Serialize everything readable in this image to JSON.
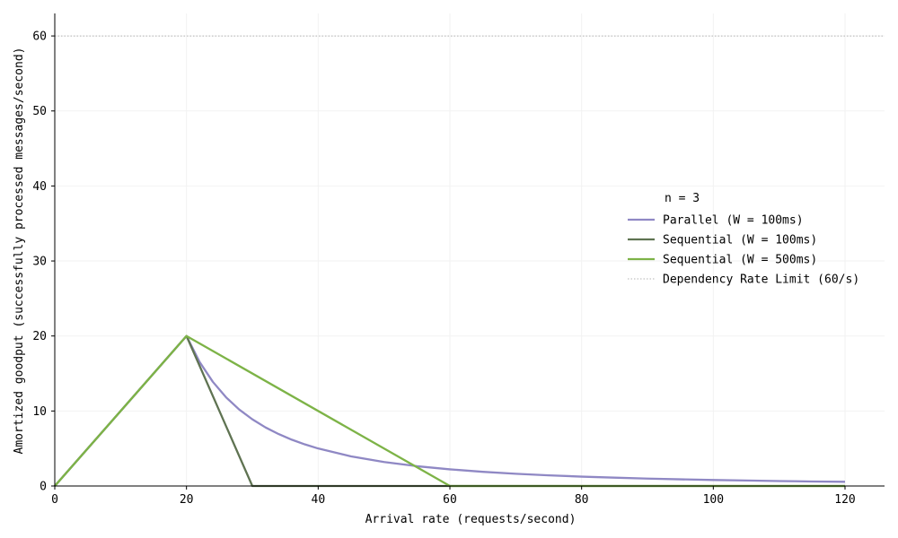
{
  "chart_data": {
    "type": "line",
    "title": "",
    "xlabel": "Arrival rate (requests/second)",
    "ylabel": "Amortized goodput (successfully processed messages/second)",
    "xlim": [
      0,
      126
    ],
    "ylim": [
      0,
      63
    ],
    "xticks": [
      0,
      20,
      40,
      60,
      80,
      100,
      120
    ],
    "yticks": [
      0,
      10,
      20,
      30,
      40,
      50,
      60
    ],
    "grid": true,
    "legend_title": "n = 3",
    "legend_position": "right",
    "series": [
      {
        "name": "Parallel (W = 100ms)",
        "color": "#8f88c4",
        "style": "solid",
        "points": [
          [
            0,
            0
          ],
          [
            20,
            20
          ],
          [
            22,
            16.53
          ],
          [
            24,
            13.89
          ],
          [
            26,
            11.83
          ],
          [
            28,
            10.2
          ],
          [
            30,
            8.89
          ],
          [
            32,
            7.81
          ],
          [
            34,
            6.92
          ],
          [
            36,
            6.17
          ],
          [
            38,
            5.54
          ],
          [
            40,
            5
          ],
          [
            45,
            3.95
          ],
          [
            50,
            3.2
          ],
          [
            55,
            2.64
          ],
          [
            60,
            2.22
          ],
          [
            65,
            1.89
          ],
          [
            70,
            1.63
          ],
          [
            75,
            1.42
          ],
          [
            80,
            1.25
          ],
          [
            85,
            1.11
          ],
          [
            90,
            0.99
          ],
          [
            95,
            0.89
          ],
          [
            100,
            0.8
          ],
          [
            105,
            0.73
          ],
          [
            110,
            0.66
          ],
          [
            115,
            0.6
          ],
          [
            120,
            0.56
          ]
        ]
      },
      {
        "name": "Sequential (W = 100ms)",
        "color": "#5f7352",
        "style": "solid",
        "points": [
          [
            0,
            0
          ],
          [
            20,
            20
          ],
          [
            30,
            0
          ],
          [
            120,
            0
          ]
        ]
      },
      {
        "name": "Sequential (W = 500ms)",
        "color": "#7db347",
        "style": "solid",
        "points": [
          [
            0,
            0
          ],
          [
            20,
            20
          ],
          [
            60,
            0
          ],
          [
            120,
            0
          ]
        ]
      },
      {
        "name": "Dependency Rate Limit (60/s)",
        "color": "#b3b3b3",
        "style": "dotted",
        "hline": 60
      }
    ]
  }
}
